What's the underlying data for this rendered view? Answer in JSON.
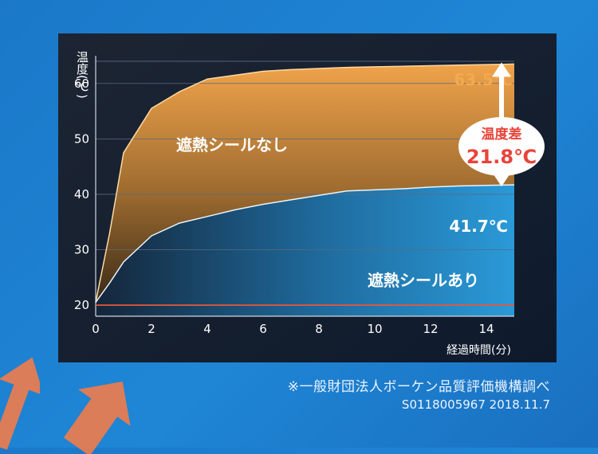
{
  "chart_data": {
    "type": "area",
    "ylabel": "温度(℃)",
    "xlabel": "経過時間(分)",
    "xlim": [
      0,
      15
    ],
    "ylim": [
      18,
      65
    ],
    "xticks": [
      0,
      2,
      4,
      6,
      8,
      10,
      12,
      14
    ],
    "yticks": [
      20,
      30,
      40,
      50,
      60
    ],
    "grid": true,
    "series": [
      {
        "name": "遮熱シールなし",
        "color": "#f3a94f",
        "end_label": "63.5℃",
        "x": [
          0,
          0.5,
          1,
          2,
          3,
          4,
          5,
          6,
          7,
          8,
          9,
          10,
          11,
          12,
          13,
          14,
          15
        ],
        "y": [
          20.5,
          33,
          47.5,
          55.5,
          58.5,
          60.8,
          61.5,
          62.2,
          62.5,
          62.7,
          62.9,
          63.0,
          63.1,
          63.2,
          63.3,
          63.4,
          63.5
        ]
      },
      {
        "name": "遮熱シールあり",
        "color": "#2f9bd8",
        "end_label": "41.7℃",
        "x": [
          0,
          0.5,
          1,
          2,
          3,
          4,
          5,
          6,
          7,
          8,
          9,
          10,
          11,
          12,
          13,
          14,
          15
        ],
        "y": [
          20.5,
          24,
          27.8,
          32.5,
          34.8,
          36,
          37.2,
          38.2,
          39,
          39.8,
          40.6,
          40.8,
          41,
          41.3,
          41.5,
          41.6,
          41.7
        ]
      },
      {
        "name": "",
        "color": "#e8573a",
        "x": [
          0,
          15
        ],
        "y": [
          20,
          20
        ]
      }
    ],
    "annotation": {
      "label": "温度差",
      "value": "21.8℃",
      "from": 63.5,
      "to": 41.7
    }
  },
  "footer": {
    "note": "※一般財団法人ボーケン品質評価機構調べ",
    "code": "S0118005967 2018.11.7"
  }
}
